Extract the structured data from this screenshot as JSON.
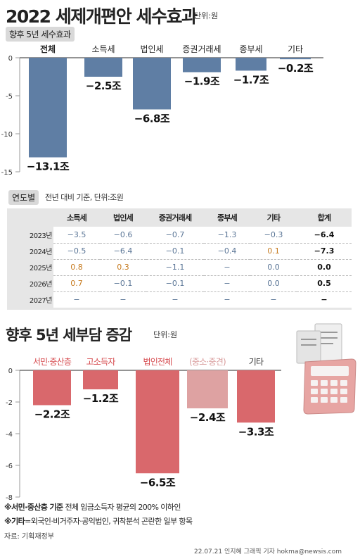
{
  "title": "2022 세제개편안 세수효과",
  "title_unit": "단위:원",
  "chart1": {
    "subtitle": "향후 5년 세수효과",
    "chart_data": {
      "type": "bar",
      "categories": [
        "전체",
        "소득세",
        "법인세",
        "증권거래세",
        "종부세",
        "기타"
      ],
      "values": [
        -13.1,
        -2.5,
        -6.8,
        -1.9,
        -1.7,
        -0.2
      ],
      "value_labels": [
        "−13.1조",
        "−2.5조",
        "−6.8조",
        "−1.9조",
        "−1.7조",
        "−0.2조"
      ],
      "yticks": [
        "0",
        "-5",
        "-10",
        "-15"
      ],
      "ylim": [
        -15,
        0
      ],
      "bar_color": "#5f7ea4"
    }
  },
  "table": {
    "label": "연도별",
    "note": "전년 대비 기준, 단위:조원",
    "chart_data": {
      "type": "table",
      "columns": [
        "소득세",
        "법인세",
        "증권거래세",
        "종부세",
        "기타",
        "합계"
      ],
      "rows": [
        {
          "year": "2023년",
          "cells": [
            "−3.5",
            "−0.6",
            "−0.7",
            "−1.3",
            "−0.3",
            "−6.4"
          ]
        },
        {
          "year": "2024년",
          "cells": [
            "−0.5",
            "−6.4",
            "−0.1",
            "−0.4",
            "0.1",
            "−7.3"
          ]
        },
        {
          "year": "2025년",
          "cells": [
            "0.8",
            "0.3",
            "−1.1",
            "−",
            "0.0",
            "0.0"
          ]
        },
        {
          "year": "2026년",
          "cells": [
            "0.7",
            "−0.1",
            "−0.1",
            "−",
            "0.0",
            "0.5"
          ]
        },
        {
          "year": "2027년",
          "cells": [
            "−",
            "−",
            "−",
            "−",
            "−",
            "−"
          ]
        }
      ]
    }
  },
  "chart2": {
    "title": "향후 5년 세부담 증감",
    "unit": "단위:원",
    "chart_data": {
      "type": "bar",
      "categories": [
        "서민·중산층",
        "고소득자",
        "법인전체",
        "(중소·중견)",
        "기타"
      ],
      "values": [
        -2.2,
        -1.2,
        -6.5,
        -2.4,
        -3.3
      ],
      "value_labels": [
        "−2.2조",
        "−1.2조",
        "−6.5조",
        "−2.4조",
        "−3.3조"
      ],
      "yticks": [
        "0",
        "-2",
        "-4",
        "-6",
        "-8"
      ],
      "ylim": [
        -8,
        0
      ],
      "bar_colors": [
        "#d9686c",
        "#d9686c",
        "#d9686c",
        "#dea2a2",
        "#d9686c"
      ],
      "label_colors": [
        "#d64a4e",
        "#d64a4e",
        "#d64a4e",
        "#d99c9c",
        "#333333"
      ]
    }
  },
  "notes": {
    "note1_bold": "※서민·중산층 기준",
    "note1_text": " 전체 임금소득자 평균의 200% 이하인",
    "note2_bold": "※기타",
    "note2_text": "=외국인·비거주자·공익법인, 귀착분석 곤란한 일부 항목",
    "source": "자료: 기획재정부",
    "credit": "22.07.21 인지혜 그래픽 기자 hokma@newsis.com"
  },
  "colors": {
    "blue_bar": "#5f7ea4",
    "red_bar": "#d9686c",
    "pink_bar": "#dea2a2",
    "neg_text": "#5a7596",
    "pos_text": "#c67a1e"
  },
  "icons": [
    "calculator-receipt-icon"
  ]
}
